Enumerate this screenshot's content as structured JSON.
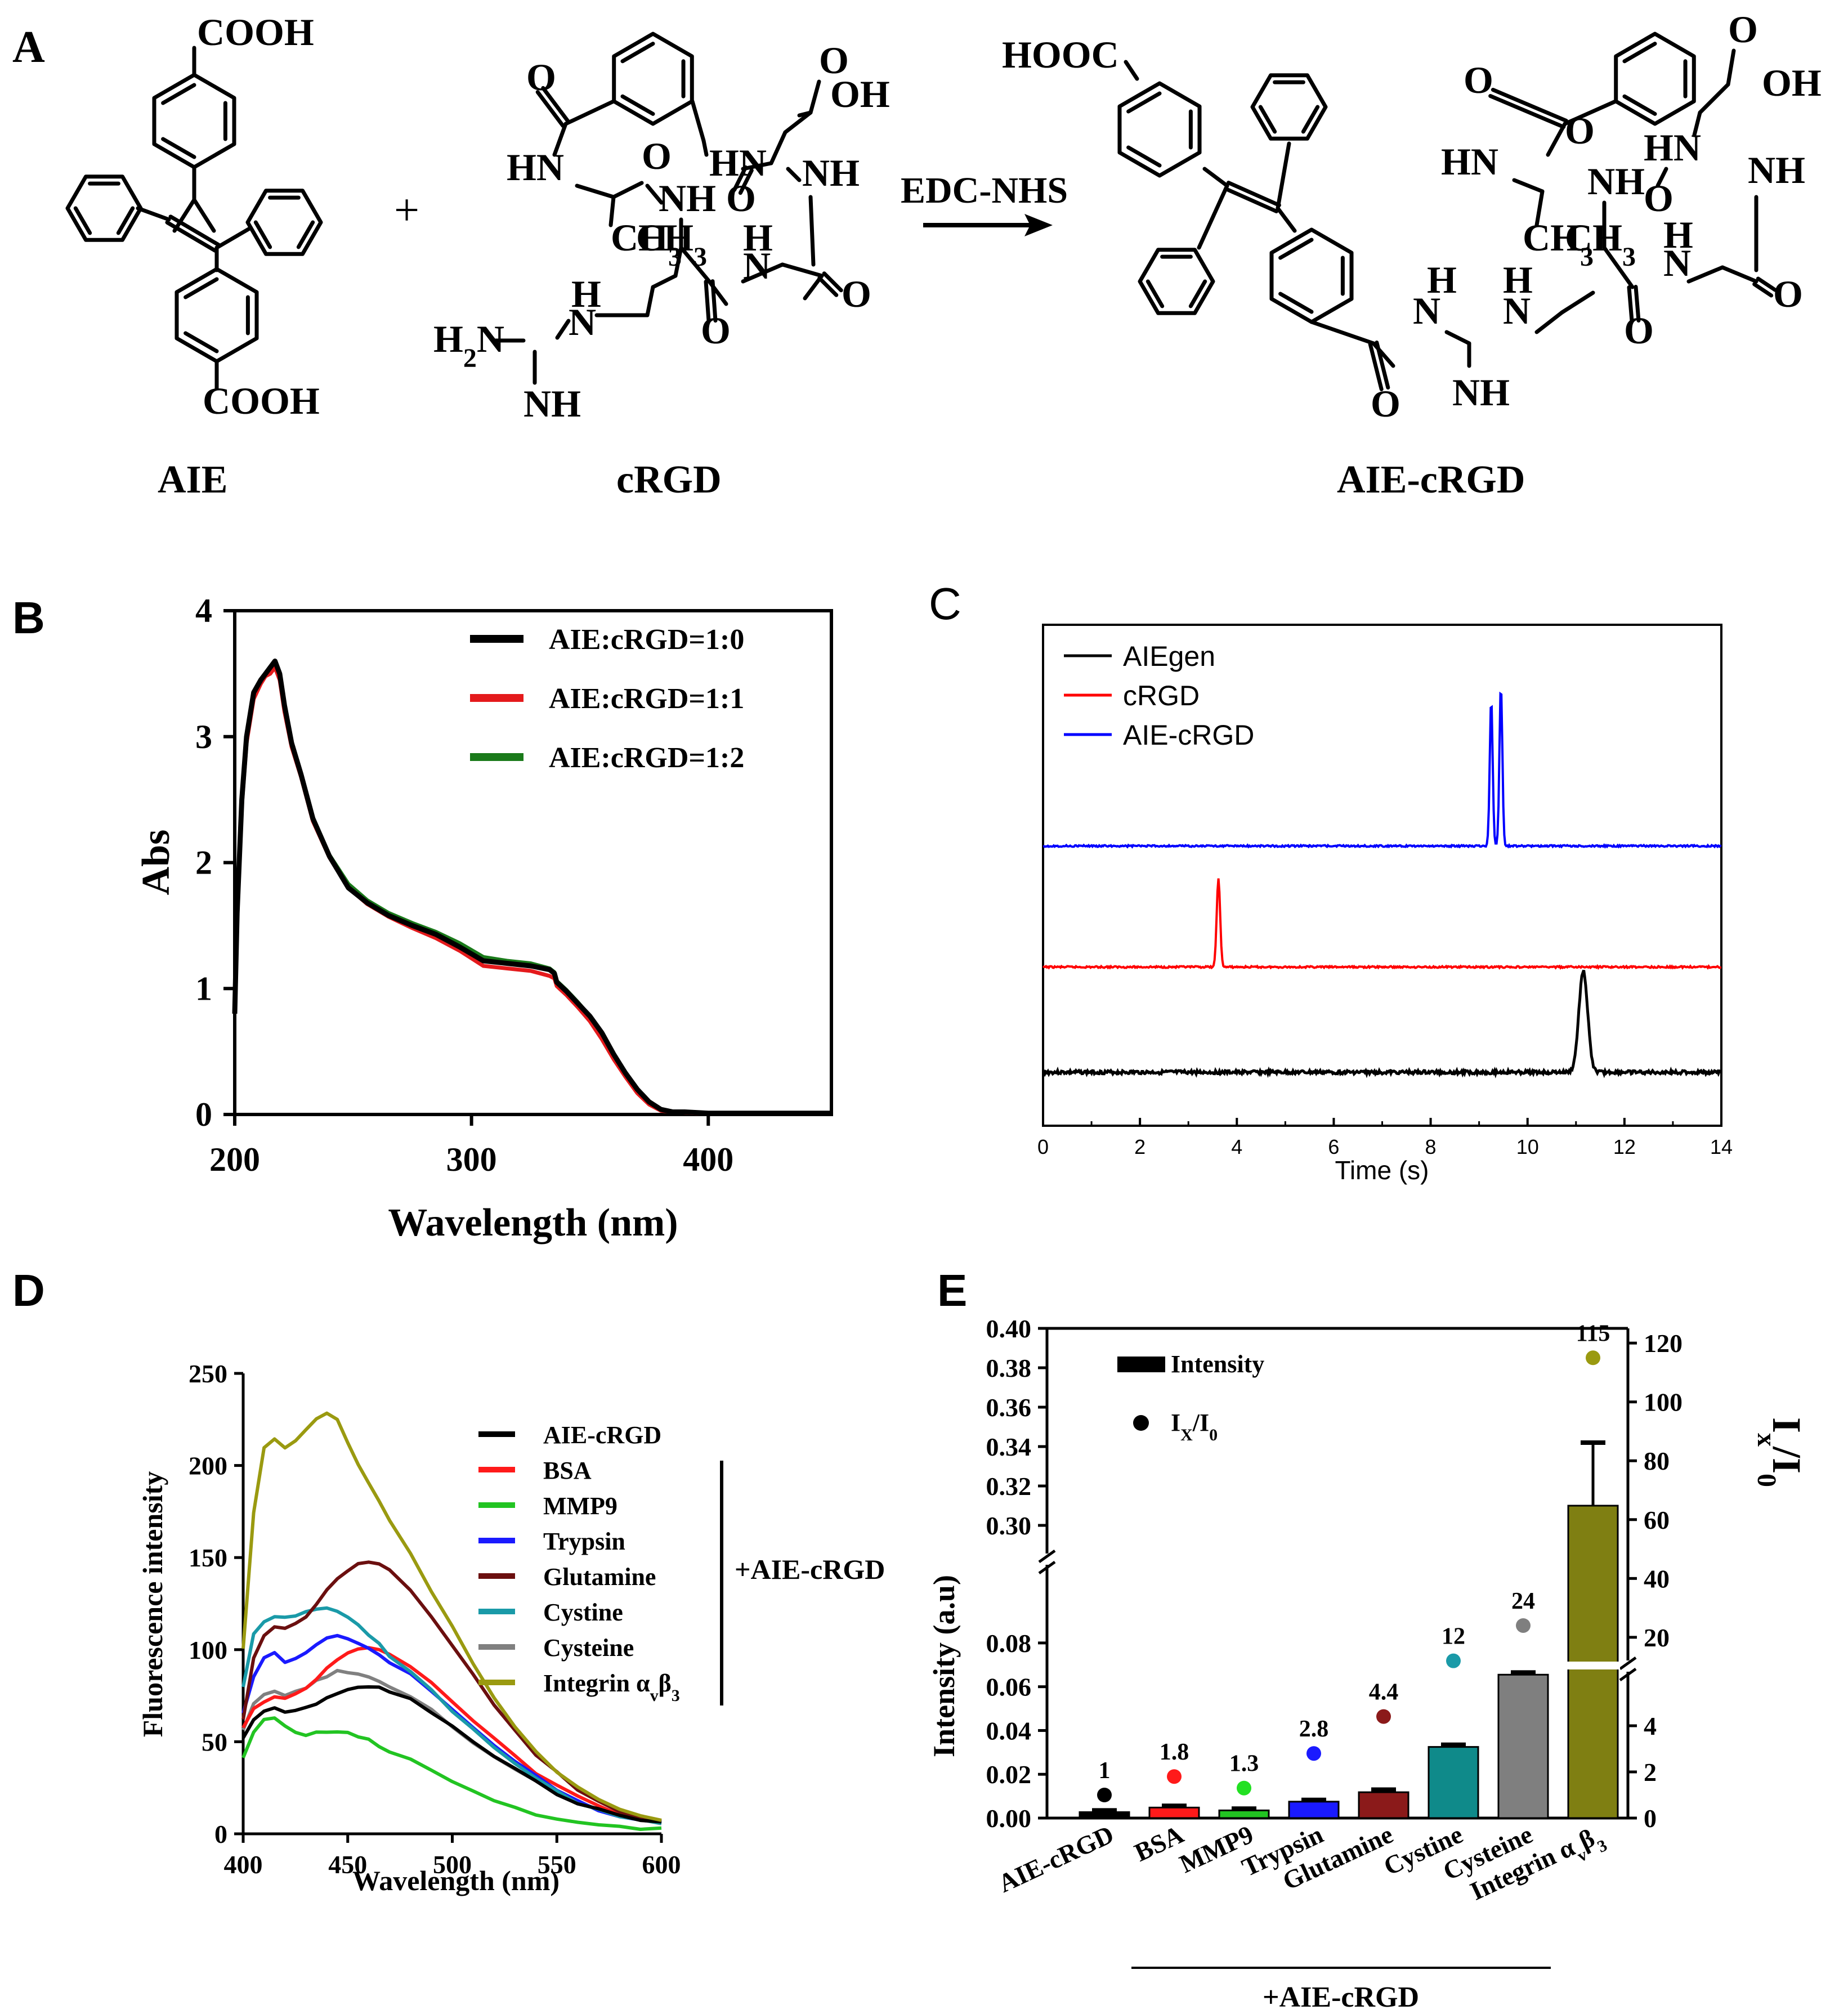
{
  "figure": {
    "panelA": {
      "letter": "A",
      "aie_name": "AIE",
      "crgd_name": "cRGD",
      "product_name": "AIE-cRGD",
      "reagent": "EDC-NHS",
      "plus": "+",
      "atoms": {
        "cooh": "COOH",
        "hooc": "HOOC",
        "oh": "OH",
        "o": "O",
        "hn": "HN",
        "nh": "NH",
        "n": "N",
        "h": "H",
        "ch3": "CH",
        "ch3_sub": "3",
        "h2n": "H",
        "h2n_sub": "2",
        "h2n_n": "N"
      }
    },
    "panelB": {
      "letter": "B",
      "colors": {
        "s10": "#000000",
        "s11": "#e41a1c",
        "s12": "#1a7a1a"
      },
      "chart_data": {
        "type": "line",
        "xlabel": "Wavelength (nm)",
        "ylabel": "Abs",
        "xlim": [
          200,
          452
        ],
        "ylim": [
          0,
          4
        ],
        "xticks": [
          200,
          300,
          400
        ],
        "yticks": [
          0,
          1,
          2,
          3,
          4
        ],
        "xtick_labels": [
          "200",
          "300",
          "400"
        ],
        "ytick_labels": [
          "0",
          "1",
          "2",
          "3",
          "4"
        ],
        "legend_position": "top-right",
        "series": [
          {
            "name": "AIE:cRGD=1:0",
            "x": [
              200,
              201,
              203,
              205,
              208,
              211,
              213,
              215,
              217,
              219,
              221,
              224,
              228,
              233,
              240,
              248,
              256,
              265,
              275,
              285,
              295,
              305,
              315,
              325,
              333,
              335,
              336,
              340,
              345,
              350,
              355,
              360,
              365,
              370,
              375,
              380,
              385,
              390,
              395,
              400,
              410,
              420,
              430,
              440,
              452
            ],
            "y": [
              0.8,
              1.6,
              2.5,
              3.0,
              3.35,
              3.45,
              3.5,
              3.55,
              3.6,
              3.5,
              3.25,
              2.95,
              2.7,
              2.35,
              2.05,
              1.8,
              1.68,
              1.58,
              1.5,
              1.43,
              1.33,
              1.22,
              1.2,
              1.18,
              1.15,
              1.12,
              1.05,
              0.98,
              0.88,
              0.78,
              0.65,
              0.48,
              0.33,
              0.2,
              0.1,
              0.04,
              0.02,
              0.02,
              0.015,
              0.01,
              0.01,
              0.01,
              0.01,
              0.01,
              0.01
            ]
          },
          {
            "name": "AIE:cRGD=1:1",
            "x": [
              200,
              201,
              203,
              205,
              208,
              211,
              213,
              215,
              217,
              219,
              221,
              224,
              228,
              233,
              240,
              248,
              256,
              265,
              275,
              285,
              295,
              305,
              315,
              325,
              333,
              335,
              336,
              340,
              345,
              350,
              355,
              360,
              365,
              370,
              375,
              380,
              385,
              390,
              395,
              400,
              410,
              420,
              430,
              440,
              452
            ],
            "y": [
              0.8,
              1.6,
              2.45,
              2.95,
              3.3,
              3.42,
              3.48,
              3.5,
              3.55,
              3.45,
              3.2,
              2.92,
              2.68,
              2.33,
              2.04,
              1.8,
              1.67,
              1.57,
              1.48,
              1.4,
              1.3,
              1.18,
              1.16,
              1.14,
              1.1,
              1.08,
              1.02,
              0.95,
              0.85,
              0.74,
              0.6,
              0.44,
              0.3,
              0.17,
              0.08,
              0.03,
              0.02,
              0.015,
              0.01,
              0.01,
              0.01,
              0.01,
              0.01,
              0.01,
              0.01
            ]
          },
          {
            "name": "AIE:cRGD=1:2",
            "x": [
              200,
              201,
              203,
              205,
              208,
              211,
              213,
              215,
              217,
              219,
              221,
              224,
              228,
              233,
              240,
              248,
              256,
              265,
              275,
              285,
              295,
              305,
              315,
              325,
              333,
              335,
              336,
              340,
              345,
              350,
              355,
              360,
              365,
              370,
              375,
              380,
              385,
              390,
              395,
              400,
              410,
              420,
              430,
              440,
              452
            ],
            "y": [
              0.8,
              1.6,
              2.48,
              2.98,
              3.32,
              3.44,
              3.49,
              3.53,
              3.58,
              3.48,
              3.23,
              2.94,
              2.7,
              2.36,
              2.06,
              1.83,
              1.7,
              1.6,
              1.52,
              1.45,
              1.36,
              1.25,
              1.22,
              1.2,
              1.16,
              1.13,
              1.06,
              0.99,
              0.89,
              0.78,
              0.64,
              0.47,
              0.32,
              0.19,
              0.09,
              0.04,
              0.02,
              0.02,
              0.015,
              0.01,
              0.01,
              0.01,
              0.01,
              0.01,
              0.01
            ]
          }
        ]
      }
    },
    "panelC": {
      "letter": "C",
      "colors": {
        "aiegen": "#000000",
        "crgd": "#ff0000",
        "aie_crgd": "#0000ff"
      },
      "chart_data": {
        "type": "line",
        "xlabel": "Time (s)",
        "ylabel": "",
        "xlim": [
          0,
          14
        ],
        "xticks": [
          0,
          2,
          4,
          6,
          8,
          10,
          12,
          14
        ],
        "xtick_labels": [
          "0",
          "2",
          "4",
          "6",
          "8",
          "10",
          "12",
          "14"
        ],
        "legend_position": "top-left",
        "series": [
          {
            "name": "AIEgen",
            "baseline": 0,
            "peaks": [
              {
                "t": 11.15,
                "height": 1.0,
                "width": 0.09
              }
            ]
          },
          {
            "name": "cRGD",
            "baseline": 1,
            "peaks": [
              {
                "t": 3.62,
                "height": 0.88,
                "width": 0.035
              }
            ]
          },
          {
            "name": "AIE-cRGD",
            "baseline": 2,
            "peaks": [
              {
                "t": 9.25,
                "height": 1.45,
                "width": 0.03
              },
              {
                "t": 9.45,
                "height": 1.58,
                "width": 0.03
              }
            ]
          }
        ]
      }
    },
    "panelD": {
      "letter": "D",
      "bracket_label": "+AIE-cRGD",
      "integrin_label": "Integrin α",
      "integrin_sub1": "v",
      "integrin_beta": "β",
      "integrin_sub2": "3",
      "colors": {
        "aie_crgd": "#000000",
        "bsa": "#ff1a1a",
        "mmp9": "#22c422",
        "trypsin": "#1a1aff",
        "glutamine": "#6b0f0f",
        "cystine": "#1a9aa8",
        "cysteine": "#808080",
        "integrin": "#9a9a10"
      },
      "chart_data": {
        "type": "line",
        "xlabel": "Wavelength (nm)",
        "ylabel": "Fluorescence intensity",
        "xlim": [
          400,
          600
        ],
        "ylim": [
          0,
          250
        ],
        "xticks": [
          400,
          450,
          500,
          550,
          600
        ],
        "yticks": [
          0,
          50,
          100,
          150,
          200,
          250
        ],
        "xtick_labels": [
          "400",
          "450",
          "500",
          "550",
          "600"
        ],
        "ytick_labels": [
          "0",
          "50",
          "100",
          "150",
          "200",
          "250"
        ],
        "x": [
          400,
          405,
          410,
          415,
          420,
          425,
          430,
          435,
          440,
          445,
          450,
          455,
          460,
          465,
          470,
          480,
          490,
          500,
          510,
          520,
          530,
          540,
          550,
          560,
          570,
          580,
          590,
          600
        ],
        "series": [
          {
            "name": "AIE-cRGD",
            "y": [
              52,
              62,
              66,
              68,
              66,
              67,
              68,
              71,
              74,
              76,
              78,
              80,
              80,
              79,
              77,
              73,
              66,
              58,
              50,
              42,
              35,
              28,
              22,
              17,
              13,
              10,
              8,
              6
            ]
          },
          {
            "name": "BSA",
            "y": [
              58,
              68,
              72,
              75,
              74,
              76,
              79,
              84,
              90,
              95,
              98,
              100,
              101,
              100,
              97,
              91,
              82,
              72,
              62,
              52,
              42,
              33,
              26,
              20,
              15,
              11,
              8,
              6
            ]
          },
          {
            "name": "MMP9",
            "y": [
              42,
              55,
              62,
              63,
              58,
              55,
              54,
              55,
              55,
              55,
              55,
              53,
              51,
              48,
              45,
              40,
              34,
              28,
              23,
              18,
              14,
              10,
              8,
              6,
              5,
              4,
              3,
              3
            ]
          },
          {
            "name": "Trypsin",
            "y": [
              65,
              85,
              95,
              98,
              93,
              95,
              98,
              102,
              106,
              108,
              106,
              103,
              100,
              97,
              93,
              87,
              78,
              68,
              58,
              48,
              39,
              31,
              24,
              18,
              13,
              10,
              8,
              6
            ]
          },
          {
            "name": "Glutamine",
            "y": [
              62,
              95,
              108,
              113,
              112,
              114,
              118,
              125,
              132,
              138,
              143,
              147,
              148,
              147,
              143,
              133,
              118,
              102,
              86,
              70,
              56,
              43,
              33,
              24,
              17,
              12,
              9,
              7
            ]
          },
          {
            "name": "Cystine",
            "y": [
              80,
              108,
              115,
              118,
              117,
              118,
              120,
              122,
              122,
              121,
              118,
              113,
              108,
              103,
              97,
              88,
              78,
              67,
              57,
              47,
              38,
              30,
              23,
              17,
              13,
              10,
              8,
              6
            ]
          },
          {
            "name": "Cysteine",
            "y": [
              57,
              70,
              75,
              77,
              75,
              77,
              79,
              83,
              86,
              88,
              88,
              87,
              85,
              83,
              80,
              75,
              67,
              58,
              50,
              42,
              35,
              28,
              22,
              17,
              13,
              10,
              8,
              6
            ]
          },
          {
            "name": "Integrin αvβ3",
            "y": [
              100,
              175,
              210,
              215,
              210,
              213,
              220,
              226,
              229,
              225,
              213,
              200,
              190,
              180,
              170,
              152,
              132,
              112,
              92,
              74,
              58,
              45,
              34,
              25,
              19,
              14,
              10,
              8
            ]
          }
        ],
        "legend_position": "right"
      }
    },
    "panelE": {
      "letter": "E",
      "bracket_label": "+AIE-cRGD",
      "legend_intensity": "Intensity",
      "legend_ratio": "I",
      "legend_ratio_sub1": "X",
      "legend_ratio_mid": "/I",
      "legend_ratio_sub2": "0",
      "right_axis_label": "I",
      "right_axis_sub1": "x",
      "right_axis_mid": "/I",
      "right_axis_sub2": "0",
      "chart_data": {
        "type": "bar",
        "ylabel": "Intensity (a.u)",
        "left_axis": {
          "lower_range": [
            0,
            0.09
          ],
          "upper_range": [
            0.29,
            0.4
          ],
          "ticks": [
            0.0,
            0.02,
            0.04,
            0.06,
            0.08,
            0.3,
            0.32,
            0.34,
            0.36,
            0.38,
            0.4
          ],
          "tick_labels": [
            "0.00",
            "0.02",
            "0.04",
            "0.06",
            "0.08",
            "0.30",
            "0.32",
            "0.34",
            "0.36",
            "0.38",
            "0.40"
          ]
        },
        "right_axis": {
          "lower_range": [
            0,
            5
          ],
          "upper_range": [
            15,
            125
          ],
          "ticks": [
            0,
            2,
            4,
            20,
            40,
            60,
            80,
            100,
            120
          ],
          "tick_labels": [
            "0",
            "2",
            "4",
            "20",
            "40",
            "60",
            "80",
            "100",
            "120"
          ]
        },
        "categories": [
          "AIE-cRGD",
          "BSA",
          "MMP9",
          "Trypsin",
          "Glutamine",
          "Cystine",
          "Cysteine",
          "Integrin αvβ3"
        ],
        "category_labels": [
          "AIE-cRGD",
          "BSA",
          "MMP9",
          "Trypsin",
          "Glutamine",
          "Cystine",
          "Cysteine",
          "Integrin α"
        ],
        "integrin_sub1": "v",
        "integrin_beta": "β",
        "integrin_sub2": "3",
        "intensity": [
          0.0027,
          0.0048,
          0.0035,
          0.0075,
          0.0118,
          0.0325,
          0.0655,
          0.31
        ],
        "intensity_err": [
          0.0008,
          0.0008,
          0.0008,
          0.0008,
          0.0012,
          0.001,
          0.001,
          0.032
        ],
        "ratio": [
          1,
          1.8,
          1.3,
          2.8,
          4.4,
          12,
          24,
          115
        ],
        "ratio_labels": [
          "1",
          "1.8",
          "1.3",
          "2.8",
          "4.4",
          "12",
          "24",
          "115"
        ],
        "colors": [
          "#000000",
          "#ff1a1a",
          "#22c422",
          "#1a1aff",
          "#8b1a1a",
          "#0f8a8a",
          "#7f7f7f",
          "#7f7f12"
        ],
        "ratio_colors": [
          "#000000",
          "#ff1a1a",
          "#22e022",
          "#1a1aff",
          "#8b1a1a",
          "#1a9aa8",
          "#7f7f7f",
          "#9a9a10"
        ]
      }
    }
  }
}
